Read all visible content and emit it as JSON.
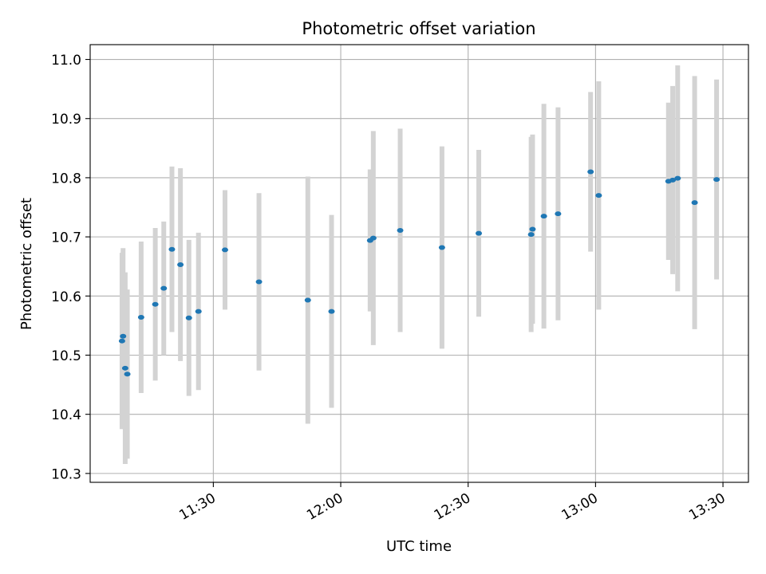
{
  "chart_data": {
    "type": "scatter",
    "title": "Photometric offset variation",
    "xlabel": "UTC time",
    "ylabel": "Photometric offset",
    "x_ticks": [
      "11:30",
      "12:00",
      "12:30",
      "13:00",
      "13:30"
    ],
    "y_ticks": [
      "10.3",
      "10.4",
      "10.5",
      "10.6",
      "10.7",
      "10.8",
      "10.9",
      "11.0"
    ],
    "xlim": [
      "11:01",
      "13:36"
    ],
    "ylim": [
      10.285,
      11.025
    ],
    "grid": true,
    "colors": {
      "point": "#1f77b4",
      "errorbar": "#d3d3d3",
      "grid": "#b0b0b0",
      "axes": "#000000"
    },
    "points": [
      {
        "time": "11:08:30",
        "y": 10.524,
        "err": 0.149
      },
      {
        "time": "11:08:45",
        "y": 10.532,
        "err": 0.149
      },
      {
        "time": "11:09:15",
        "y": 10.478,
        "err": 0.162
      },
      {
        "time": "11:09:45",
        "y": 10.468,
        "err": 0.143
      },
      {
        "time": "11:13:00",
        "y": 10.564,
        "err": 0.128
      },
      {
        "time": "11:16:20",
        "y": 10.586,
        "err": 0.129
      },
      {
        "time": "11:18:20",
        "y": 10.613,
        "err": 0.113
      },
      {
        "time": "11:20:15",
        "y": 10.679,
        "err": 0.14
      },
      {
        "time": "11:22:15",
        "y": 10.653,
        "err": 0.163
      },
      {
        "time": "11:24:15",
        "y": 10.563,
        "err": 0.132
      },
      {
        "time": "11:26:30",
        "y": 10.574,
        "err": 0.133
      },
      {
        "time": "11:32:45",
        "y": 10.678,
        "err": 0.101
      },
      {
        "time": "11:40:45",
        "y": 10.624,
        "err": 0.15
      },
      {
        "time": "11:52:15",
        "y": 10.593,
        "err": 0.209
      },
      {
        "time": "11:57:50",
        "y": 10.574,
        "err": 0.163
      },
      {
        "time": "12:06:55",
        "y": 10.694,
        "err": 0.12
      },
      {
        "time": "12:07:40",
        "y": 10.698,
        "err": 0.181
      },
      {
        "time": "12:14:00",
        "y": 10.711,
        "err": 0.172
      },
      {
        "time": "12:23:50",
        "y": 10.682,
        "err": 0.171
      },
      {
        "time": "12:32:30",
        "y": 10.706,
        "err": 0.141
      },
      {
        "time": "12:44:50",
        "y": 10.704,
        "err": 0.165
      },
      {
        "time": "12:45:10",
        "y": 10.713,
        "err": 0.16
      },
      {
        "time": "12:47:50",
        "y": 10.735,
        "err": 0.19
      },
      {
        "time": "12:51:10",
        "y": 10.739,
        "err": 0.18
      },
      {
        "time": "12:58:50",
        "y": 10.81,
        "err": 0.135
      },
      {
        "time": "13:00:45",
        "y": 10.77,
        "err": 0.193
      },
      {
        "time": "13:17:10",
        "y": 10.794,
        "err": 0.133
      },
      {
        "time": "13:18:10",
        "y": 10.796,
        "err": 0.159
      },
      {
        "time": "13:19:20",
        "y": 10.799,
        "err": 0.191
      },
      {
        "time": "13:23:20",
        "y": 10.758,
        "err": 0.214
      },
      {
        "time": "13:28:30",
        "y": 10.797,
        "err": 0.169
      }
    ]
  }
}
